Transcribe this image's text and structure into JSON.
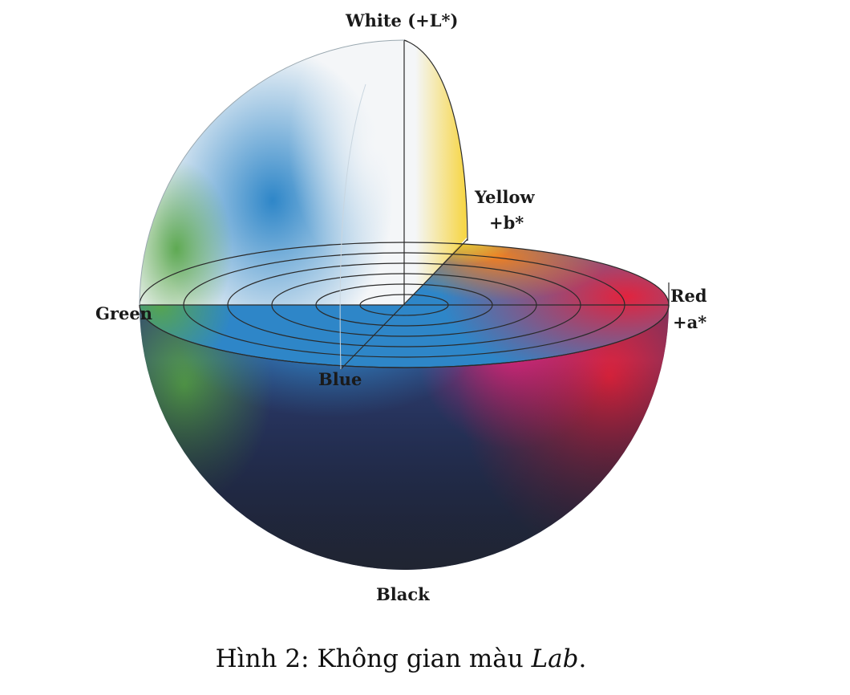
{
  "axes": {
    "white": "White (+L*)",
    "yellow": "Yellow",
    "b_axis": "+b*",
    "red": "Red",
    "a_axis": "+a*",
    "green": "Green",
    "blue": "Blue",
    "black": "Black"
  },
  "caption": {
    "prefix": "Hình 2: Không gian màu ",
    "italic": "Lab",
    "suffix": "."
  },
  "colors": {
    "white": "#f4f6f8",
    "yellow": "#f7d12a",
    "orange": "#ef7d22",
    "red": "#e2233e",
    "magenta": "#d8247a",
    "blue": "#2e86c8",
    "navy": "#2f3f73",
    "green": "#58a64a",
    "black": "#1e2024"
  },
  "grid": {
    "ring_count": 6
  }
}
